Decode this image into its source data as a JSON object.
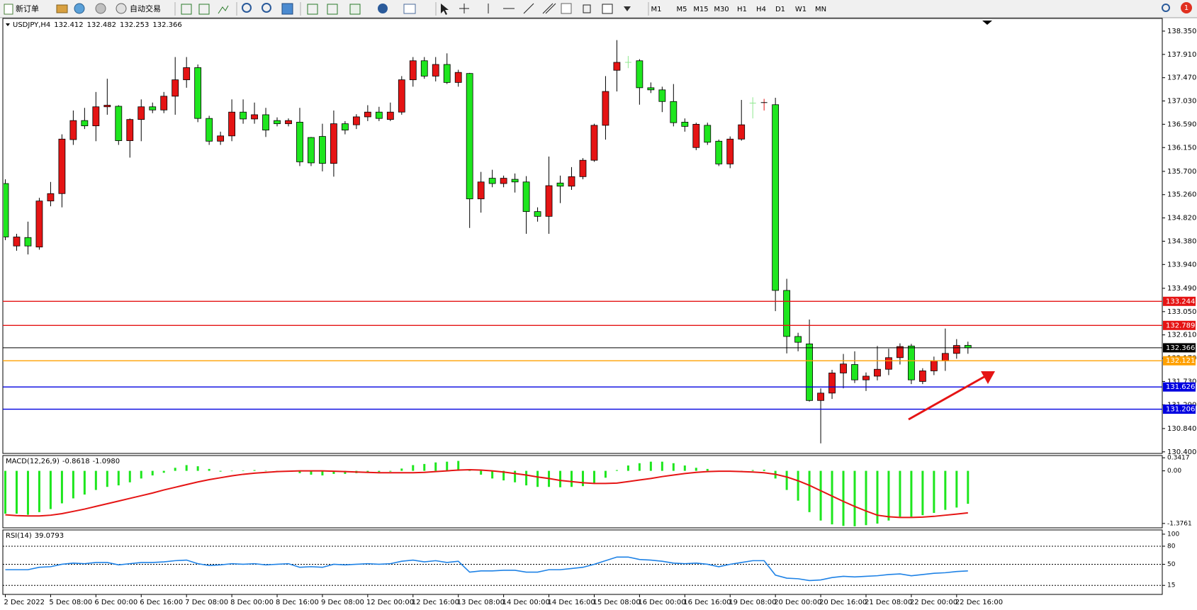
{
  "toolbar": {
    "new_order": "新订单",
    "auto_trading": "自动交易",
    "timeframes": [
      "M1",
      "M5",
      "M15",
      "M30",
      "H1",
      "H4",
      "D1",
      "W1",
      "MN"
    ],
    "notification_count": 1
  },
  "chart_data": [
    {
      "type": "candlestick",
      "title": "USDJPY,H4",
      "categories": [
        "2 Dec 2022",
        null,
        null,
        null,
        "5 Dec 08:00",
        null,
        null,
        null,
        "6 Dec 00:00",
        null,
        null,
        null,
        "6 Dec 16:00",
        null,
        null,
        null,
        "7 Dec 08:00",
        null,
        null,
        null,
        "8 Dec 00:00",
        null,
        null,
        null,
        "8 Dec 16:00",
        null,
        null,
        null,
        "9 Dec 08:00",
        null,
        null,
        null,
        "12 Dec 00:00",
        null,
        null,
        null,
        "12 Dec 16:00",
        null,
        null,
        null,
        "13 Dec 08:00",
        null,
        null,
        null,
        "14 Dec 00:00",
        null,
        null,
        null,
        "14 Dec 16:00",
        null,
        null,
        null,
        "15 Dec 08:00",
        null,
        null,
        null,
        "16 Dec 00:00",
        null,
        null,
        null,
        "16 Dec 16:00",
        null,
        null,
        null,
        "19 Dec 08:00",
        null,
        null,
        null,
        "20 Dec 00:00",
        null,
        null,
        null,
        "20 Dec 16:00",
        null,
        null,
        null,
        "21 Dec 08:00",
        null,
        null,
        null,
        "22 Dec 00:00",
        null,
        null,
        null,
        "22 Dec 16:00",
        null
      ],
      "open": [
        135.47,
        134.29,
        134.45,
        134.27,
        135.14,
        135.28,
        136.3,
        136.66,
        136.56,
        136.92,
        136.93,
        136.28,
        136.68,
        136.92,
        136.86,
        137.12,
        137.43,
        137.66,
        136.7,
        136.27,
        136.37,
        136.82,
        136.69,
        136.77,
        136.66,
        136.6,
        136.63,
        136.34,
        136.36,
        135.85,
        136.6,
        136.58,
        136.73,
        136.82,
        136.68,
        136.82,
        137.43,
        137.79,
        137.5,
        137.72,
        137.38,
        137.55,
        135.18,
        135.57,
        135.47,
        135.55,
        135.5,
        134.94,
        134.85,
        135.48,
        135.42,
        135.6,
        135.91,
        136.57,
        137.61,
        137.76,
        137.79,
        137.28,
        137.24,
        137.02,
        136.63,
        136.15,
        136.57,
        136.27,
        135.84,
        136.31,
        136.99,
        136.99,
        136.96,
        133.45,
        132.58,
        132.44,
        131.37,
        131.51,
        131.89,
        132.05,
        131.76,
        131.83,
        131.96,
        132.18,
        132.4,
        131.73,
        131.93,
        132.12,
        132.26,
        132.412
      ],
      "high": [
        135.55,
        134.52,
        134.75,
        135.2,
        135.5,
        136.4,
        136.85,
        136.9,
        137.2,
        137.45,
        136.95,
        136.7,
        137.06,
        137.0,
        137.2,
        137.86,
        137.86,
        137.72,
        136.75,
        136.45,
        137.06,
        137.06,
        137.0,
        136.9,
        136.72,
        136.7,
        136.9,
        136.35,
        136.6,
        136.85,
        136.65,
        136.78,
        136.95,
        136.92,
        137.0,
        137.5,
        137.86,
        137.86,
        137.86,
        137.93,
        137.62,
        137.56,
        135.69,
        135.73,
        135.62,
        135.66,
        135.61,
        135.02,
        135.98,
        135.62,
        135.78,
        135.95,
        136.6,
        137.5,
        138.18,
        137.88,
        137.82,
        137.38,
        137.3,
        137.35,
        136.7,
        136.62,
        136.62,
        136.3,
        136.36,
        137.05,
        137.1,
        137.07,
        137.09,
        133.67,
        132.65,
        132.9,
        131.6,
        131.95,
        132.25,
        132.3,
        131.9,
        132.4,
        132.35,
        132.45,
        132.44,
        131.98,
        132.2,
        132.73,
        132.53,
        132.482
      ],
      "low": [
        134.4,
        134.2,
        134.13,
        134.22,
        135.04,
        135.02,
        136.2,
        136.5,
        136.27,
        136.77,
        136.2,
        135.96,
        136.27,
        136.8,
        136.8,
        136.77,
        137.28,
        136.63,
        136.2,
        136.2,
        136.27,
        136.6,
        136.6,
        136.35,
        136.55,
        136.55,
        135.8,
        135.8,
        135.7,
        135.6,
        136.4,
        136.5,
        136.65,
        136.65,
        136.65,
        136.77,
        137.3,
        137.45,
        137.4,
        137.35,
        137.3,
        134.63,
        134.92,
        135.4,
        135.4,
        135.3,
        134.52,
        134.75,
        134.52,
        135.1,
        135.35,
        135.55,
        135.88,
        136.3,
        137.21,
        137.65,
        136.96,
        137.18,
        136.82,
        136.55,
        136.45,
        136.1,
        136.2,
        135.8,
        135.76,
        136.28,
        136.7,
        136.85,
        133.06,
        132.26,
        132.3,
        131.35,
        130.56,
        131.4,
        131.6,
        131.7,
        131.55,
        131.75,
        131.85,
        132.05,
        131.68,
        131.68,
        131.85,
        131.93,
        132.16,
        132.253
      ],
      "close": [
        134.46,
        134.46,
        134.29,
        135.14,
        135.28,
        136.31,
        136.66,
        136.56,
        136.92,
        136.95,
        136.28,
        136.68,
        136.92,
        136.86,
        137.12,
        137.43,
        137.66,
        136.7,
        136.27,
        136.37,
        136.82,
        136.69,
        136.77,
        136.48,
        136.6,
        136.66,
        135.88,
        135.86,
        135.85,
        136.6,
        136.48,
        136.73,
        136.82,
        136.7,
        136.82,
        137.43,
        137.79,
        137.5,
        137.72,
        137.38,
        137.57,
        135.18,
        135.5,
        135.47,
        135.57,
        135.5,
        134.94,
        134.85,
        135.43,
        135.42,
        135.6,
        135.91,
        136.57,
        137.21,
        137.76,
        137.76,
        137.28,
        137.24,
        137.02,
        136.62,
        136.55,
        136.59,
        136.25,
        135.84,
        136.31,
        136.58,
        136.99,
        137.0,
        133.45,
        132.58,
        132.47,
        131.37,
        131.51,
        131.89,
        132.06,
        131.76,
        131.83,
        131.96,
        132.18,
        132.39,
        131.76,
        131.93,
        132.12,
        132.26,
        132.41,
        132.366
      ],
      "up_color": "#e51414",
      "down_color": "#1ee61e",
      "doji_color": "#8fe88f",
      "ylim": [
        130.37,
        138.59
      ],
      "yticks": [
        {
          "value": 138.35,
          "label": "138.350"
        },
        {
          "value": 137.91,
          "label": "137.910"
        },
        {
          "value": 137.47,
          "label": "137.470"
        },
        {
          "value": 137.03,
          "label": "137.030"
        },
        {
          "value": 136.59,
          "label": "136.590"
        },
        {
          "value": 136.15,
          "label": "136.150"
        },
        {
          "value": 135.7,
          "label": "135.700"
        },
        {
          "value": 135.26,
          "label": "135.260"
        },
        {
          "value": 134.82,
          "label": "134.820"
        },
        {
          "value": 134.38,
          "label": "134.380"
        },
        {
          "value": 133.94,
          "label": "133.940"
        },
        {
          "value": 133.49,
          "label": "133.490"
        },
        {
          "value": 133.05,
          "label": "133.050"
        },
        {
          "value": 132.61,
          "label": "132.610"
        },
        {
          "value": 132.17,
          "label": "132.170"
        },
        {
          "value": 131.73,
          "label": "131.730"
        },
        {
          "value": 131.29,
          "label": "131.290"
        },
        {
          "value": 130.84,
          "label": "130.840"
        },
        {
          "value": 130.4,
          "label": "130.400"
        }
      ],
      "levels": [
        {
          "value": 133.244,
          "color": "#e51414"
        },
        {
          "value": 132.789,
          "color": "#e51414"
        },
        {
          "value": 132.366,
          "color": "#000000"
        },
        {
          "value": 132.121,
          "color": "#ffa000"
        },
        {
          "value": 131.626,
          "color": "#0000e0"
        },
        {
          "value": 131.206,
          "color": "#0000e0"
        }
      ]
    },
    {
      "type": "macd",
      "title": "MACD(12,26,9)",
      "readout": [
        -0.8618,
        {
          "value": -1.098,
          "label": "-1.0980"
        }
      ],
      "histogram": {
        "color": "#1ee61e",
        "values": [
          -1.12,
          -1.12,
          -1.15,
          -1.08,
          -1.0,
          -0.85,
          -0.72,
          -0.62,
          -0.5,
          -0.42,
          -0.38,
          -0.3,
          -0.2,
          -0.12,
          -0.05,
          0.08,
          0.15,
          0.12,
          0.05,
          -0.02,
          0.0,
          0.01,
          0.02,
          0.0,
          -0.02,
          -0.02,
          -0.06,
          -0.1,
          -0.12,
          -0.08,
          -0.08,
          -0.06,
          -0.04,
          -0.03,
          -0.02,
          0.06,
          0.15,
          0.18,
          0.22,
          0.24,
          0.26,
          0.04,
          -0.1,
          -0.2,
          -0.25,
          -0.3,
          -0.38,
          -0.42,
          -0.42,
          -0.43,
          -0.42,
          -0.4,
          -0.32,
          -0.18,
          0.02,
          0.14,
          0.2,
          0.24,
          0.24,
          0.2,
          0.14,
          0.08,
          0.05,
          -0.02,
          -0.02,
          0.0,
          0.02,
          0.03,
          -0.2,
          -0.5,
          -0.78,
          -1.08,
          -1.3,
          -1.4,
          -1.44,
          -1.45,
          -1.42,
          -1.38,
          -1.3,
          -1.2,
          -1.2,
          -1.16,
          -1.1,
          -1.02,
          -0.96,
          -0.8618
        ]
      },
      "signal": {
        "color": "#e51414",
        "values": [
          -1.15,
          -1.17,
          -1.18,
          -1.18,
          -1.16,
          -1.12,
          -1.06,
          -1.0,
          -0.93,
          -0.86,
          -0.79,
          -0.72,
          -0.65,
          -0.58,
          -0.5,
          -0.43,
          -0.36,
          -0.29,
          -0.23,
          -0.18,
          -0.13,
          -0.09,
          -0.06,
          -0.04,
          -0.02,
          -0.01,
          0.0,
          0.0,
          0.0,
          -0.01,
          -0.02,
          -0.03,
          -0.04,
          -0.05,
          -0.05,
          -0.05,
          -0.05,
          -0.04,
          -0.02,
          0.0,
          0.02,
          0.03,
          0.02,
          0.0,
          -0.03,
          -0.07,
          -0.11,
          -0.16,
          -0.2,
          -0.25,
          -0.28,
          -0.31,
          -0.33,
          -0.33,
          -0.32,
          -0.28,
          -0.24,
          -0.2,
          -0.15,
          -0.11,
          -0.07,
          -0.04,
          -0.02,
          -0.01,
          -0.01,
          -0.02,
          -0.03,
          -0.05,
          -0.09,
          -0.16,
          -0.26,
          -0.38,
          -0.52,
          -0.66,
          -0.8,
          -0.93,
          -1.05,
          -1.16,
          -1.2,
          -1.22,
          -1.22,
          -1.21,
          -1.19,
          -1.16,
          -1.13,
          -1.098
        ]
      },
      "ylim": [
        -1.49,
        0.4
      ],
      "yticks": [
        0.3417,
        {
          "value": 0,
          "label": "0.00"
        },
        -1.3761
      ]
    },
    {
      "type": "line",
      "title": "RSI(14)",
      "readout": 39.0793,
      "color": "#1e82e6",
      "values": [
        41,
        41,
        41,
        45,
        46,
        50,
        52,
        51,
        53,
        53,
        49,
        51,
        53,
        53,
        54,
        56,
        57,
        51,
        48,
        49,
        51,
        50,
        51,
        49,
        50,
        51,
        45,
        46,
        45,
        50,
        49,
        50,
        51,
        50,
        51,
        55,
        57,
        54,
        56,
        53,
        55,
        37,
        39,
        39,
        40,
        40,
        37,
        37,
        41,
        41,
        43,
        45,
        50,
        56,
        62,
        62,
        58,
        57,
        55,
        52,
        51,
        52,
        50,
        46,
        50,
        53,
        56,
        56,
        32,
        27,
        26,
        23,
        24,
        28,
        30,
        29,
        30,
        31,
        33,
        34,
        31,
        33,
        35,
        36,
        38,
        39.0793
      ],
      "ylim": [
        0,
        107
      ],
      "yticks": [
        100,
        80,
        50,
        15
      ],
      "levels": [
        80,
        50,
        15
      ]
    }
  ]
}
